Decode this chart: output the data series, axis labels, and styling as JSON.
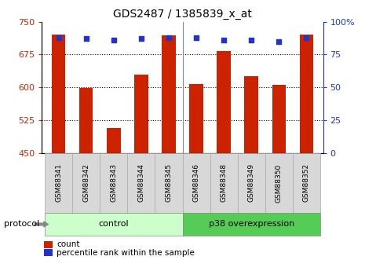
{
  "title": "GDS2487 / 1385839_x_at",
  "samples": [
    "GSM88341",
    "GSM88342",
    "GSM88343",
    "GSM88344",
    "GSM88345",
    "GSM88346",
    "GSM88348",
    "GSM88349",
    "GSM88350",
    "GSM88352"
  ],
  "counts": [
    720,
    598,
    508,
    630,
    718,
    608,
    683,
    625,
    605,
    720
  ],
  "percentile_ranks": [
    88,
    87,
    86,
    87,
    88,
    88,
    86,
    86,
    85,
    88
  ],
  "ylim_left": [
    450,
    750
  ],
  "ylim_right": [
    0,
    100
  ],
  "yticks_left": [
    450,
    525,
    600,
    675,
    750
  ],
  "yticks_right": [
    0,
    25,
    50,
    75,
    100
  ],
  "yticklabels_right": [
    "0",
    "25",
    "50",
    "75",
    "100%"
  ],
  "bar_color": "#cc2200",
  "dot_color": "#2233cc",
  "bar_bottom": 450,
  "groups": [
    {
      "label": "control",
      "color_light": "#ccffcc",
      "color_dark": "#66dd66",
      "start": 0,
      "end": 4
    },
    {
      "label": "p38 overexpression",
      "color_light": "#66dd66",
      "color_dark": "#44cc44",
      "start": 5,
      "end": 9
    }
  ],
  "protocol_label": "protocol",
  "legend_items": [
    {
      "label": "count",
      "color": "#cc2200"
    },
    {
      "label": "percentile rank within the sample",
      "color": "#2233cc"
    }
  ],
  "separator_x": 4.5,
  "xlim": [
    -0.6,
    9.6
  ],
  "bar_width": 0.5
}
